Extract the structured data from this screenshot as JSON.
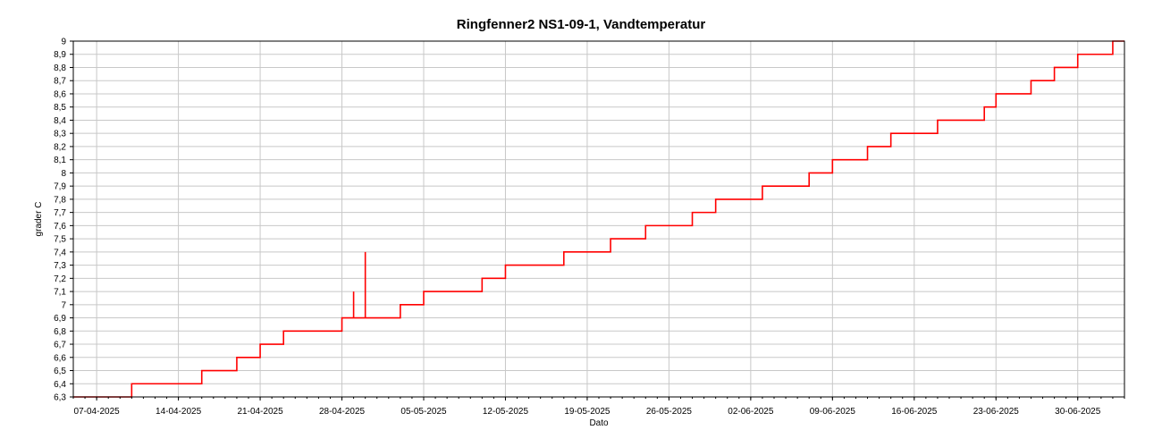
{
  "chart_data": {
    "type": "line",
    "title": "Ringfenner2 NS1-09-1, Vandtemperatur",
    "xlabel": "Dato",
    "ylabel": "grader C",
    "x_is_date": true,
    "xlim": [
      "2025-04-05",
      "2025-07-04"
    ],
    "ylim": [
      6.3,
      9.0
    ],
    "x_ticks": [
      "2025-04-07",
      "2025-04-14",
      "2025-04-21",
      "2025-04-28",
      "2025-05-05",
      "2025-05-12",
      "2025-05-19",
      "2025-05-26",
      "2025-06-02",
      "2025-06-09",
      "2025-06-16",
      "2025-06-23",
      "2025-06-30"
    ],
    "x_tick_labels": [
      "07-04-2025",
      "14-04-2025",
      "21-04-2025",
      "28-04-2025",
      "05-05-2025",
      "12-05-2025",
      "19-05-2025",
      "26-05-2025",
      "02-06-2025",
      "09-06-2025",
      "16-06-2025",
      "23-06-2025",
      "30-06-2025"
    ],
    "y_ticks": [
      6.3,
      6.4,
      6.5,
      6.6,
      6.7,
      6.8,
      6.9,
      7.0,
      7.1,
      7.2,
      7.3,
      7.4,
      7.5,
      7.6,
      7.7,
      7.8,
      7.9,
      8.0,
      8.1,
      8.2,
      8.3,
      8.4,
      8.5,
      8.6,
      8.7,
      8.8,
      8.9,
      9.0
    ],
    "y_tick_labels": [
      "6,3",
      "6,4",
      "6,5",
      "6,6",
      "6,7",
      "6,8",
      "6,9",
      "7",
      "7,1",
      "7,2",
      "7,3",
      "7,4",
      "7,5",
      "7,6",
      "7,7",
      "7,8",
      "7,9",
      "8",
      "8,1",
      "8,2",
      "8,3",
      "8,4",
      "8,5",
      "8,6",
      "8,7",
      "8,8",
      "8,9",
      "9"
    ],
    "grid": true,
    "legend": false,
    "colors": {
      "series": "#ff0000",
      "grid": "#c8c8c8",
      "axis": "#000000"
    },
    "series": [
      {
        "values": [
          [
            "2025-04-05",
            6.3
          ],
          [
            "2025-04-10",
            6.3
          ],
          [
            "2025-04-10",
            6.4
          ],
          [
            "2025-04-16",
            6.4
          ],
          [
            "2025-04-16",
            6.5
          ],
          [
            "2025-04-19",
            6.5
          ],
          [
            "2025-04-19",
            6.6
          ],
          [
            "2025-04-21",
            6.6
          ],
          [
            "2025-04-21",
            6.7
          ],
          [
            "2025-04-23",
            6.7
          ],
          [
            "2025-04-23",
            6.8
          ],
          [
            "2025-04-28",
            6.8
          ],
          [
            "2025-04-28",
            6.9
          ],
          [
            "2025-04-29",
            6.9
          ],
          [
            "2025-04-29",
            7.1
          ],
          [
            "2025-04-29",
            6.9
          ],
          [
            "2025-04-30",
            6.9
          ],
          [
            "2025-04-30",
            7.4
          ],
          [
            "2025-04-30",
            6.9
          ],
          [
            "2025-05-03",
            6.9
          ],
          [
            "2025-05-03",
            7.0
          ],
          [
            "2025-05-05",
            7.0
          ],
          [
            "2025-05-05",
            7.1
          ],
          [
            "2025-05-10",
            7.1
          ],
          [
            "2025-05-10",
            7.2
          ],
          [
            "2025-05-12",
            7.2
          ],
          [
            "2025-05-12",
            7.3
          ],
          [
            "2025-05-17",
            7.3
          ],
          [
            "2025-05-17",
            7.4
          ],
          [
            "2025-05-21",
            7.4
          ],
          [
            "2025-05-21",
            7.5
          ],
          [
            "2025-05-24",
            7.5
          ],
          [
            "2025-05-24",
            7.6
          ],
          [
            "2025-05-28",
            7.6
          ],
          [
            "2025-05-28",
            7.7
          ],
          [
            "2025-05-30",
            7.7
          ],
          [
            "2025-05-30",
            7.8
          ],
          [
            "2025-06-03",
            7.8
          ],
          [
            "2025-06-03",
            7.9
          ],
          [
            "2025-06-07",
            7.9
          ],
          [
            "2025-06-07",
            8.0
          ],
          [
            "2025-06-09",
            8.0
          ],
          [
            "2025-06-09",
            8.1
          ],
          [
            "2025-06-12",
            8.1
          ],
          [
            "2025-06-12",
            8.2
          ],
          [
            "2025-06-14",
            8.2
          ],
          [
            "2025-06-14",
            8.3
          ],
          [
            "2025-06-18",
            8.3
          ],
          [
            "2025-06-18",
            8.4
          ],
          [
            "2025-06-22",
            8.4
          ],
          [
            "2025-06-22",
            8.5
          ],
          [
            "2025-06-23",
            8.5
          ],
          [
            "2025-06-23",
            8.6
          ],
          [
            "2025-06-26",
            8.6
          ],
          [
            "2025-06-26",
            8.7
          ],
          [
            "2025-06-28",
            8.7
          ],
          [
            "2025-06-28",
            8.8
          ],
          [
            "2025-06-30",
            8.8
          ],
          [
            "2025-06-30",
            8.9
          ],
          [
            "2025-07-03",
            8.9
          ],
          [
            "2025-07-03",
            9.0
          ],
          [
            "2025-07-04",
            9.0
          ]
        ]
      }
    ]
  }
}
